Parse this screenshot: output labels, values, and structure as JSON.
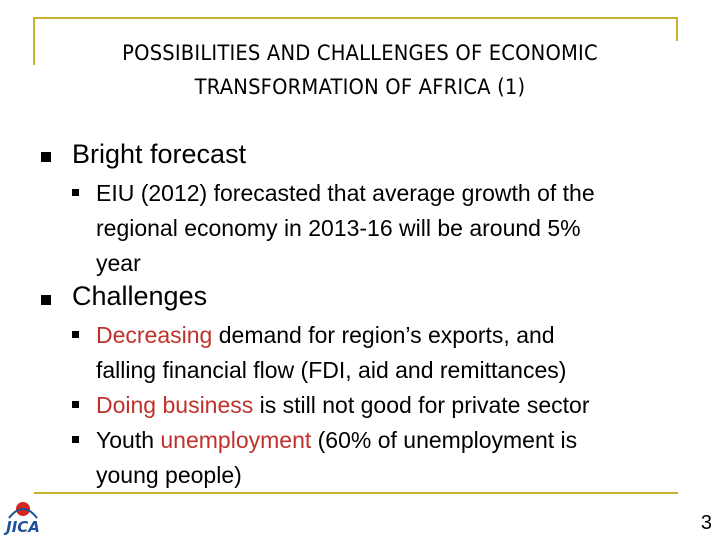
{
  "slide": {
    "title_line1": "POSSIBILITIES AND CHALLENGES OF ECONOMIC",
    "title_line2": "TRANSFORMATION OF AFRICA (1)",
    "page_number": "3",
    "logo_text": "JICA"
  },
  "sections": [
    {
      "heading": "Bright forecast",
      "items": [
        {
          "line1": "EIU (2012) forecasted that average growth of the",
          "line2": "regional economy in 2013-16 will be around 5%",
          "line3": "year"
        }
      ]
    },
    {
      "heading": "Challenges",
      "items": [
        {
          "accent": "Decreasing",
          "rest1": " demand for region’s exports, and",
          "line2": "falling financial flow (FDI, aid and remittances)"
        },
        {
          "accent": "Doing business",
          "rest1": " is still not good for private sector"
        },
        {
          "pre": "Youth ",
          "accent": "unemployment",
          "rest1": " (60% of unemployment is",
          "line2": "young people)"
        }
      ]
    }
  ],
  "colors": {
    "accent": "#c0312b",
    "frame": "#c8b22c",
    "logo_blue": "#1f4e9a",
    "logo_red": "#d7261e"
  }
}
